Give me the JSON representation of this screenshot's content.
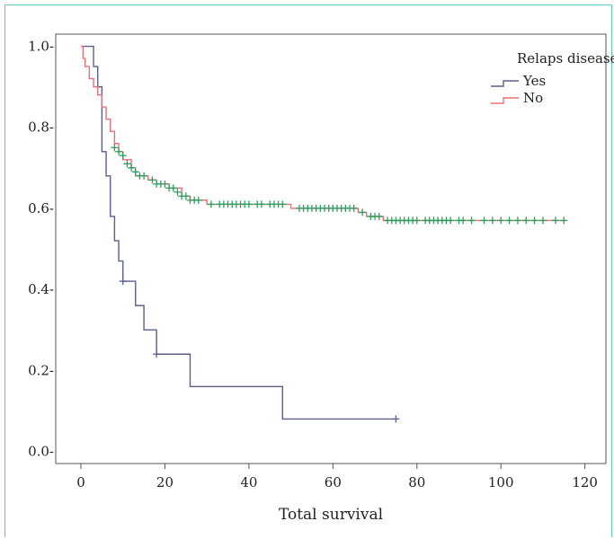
{
  "chart_data": {
    "type": "line",
    "subtype": "kaplan-meier step",
    "title": "",
    "xlabel": "Total survival",
    "ylabel": "",
    "xlim": [
      -6,
      125
    ],
    "ylim": [
      -0.03,
      1.03
    ],
    "xticks": [
      0,
      20,
      40,
      60,
      80,
      100,
      120
    ],
    "yticks": [
      0.0,
      0.2,
      0.4,
      0.6,
      0.8,
      1.0
    ],
    "xtick_labels": [
      "0",
      "20",
      "40",
      "60",
      "80",
      "100",
      "120"
    ],
    "ytick_labels": [
      "0.0-",
      "0.2-",
      "0.4-",
      "0.6-",
      "0.8-",
      "1.0-"
    ],
    "grid": false,
    "legend": {
      "title": "Relaps disease",
      "position": "top-right"
    },
    "censor_color": "#2e9e5e",
    "series": [
      {
        "name": "Yes",
        "color": "#5a5f8c",
        "steps": [
          [
            0,
            1.0
          ],
          [
            3,
            0.95
          ],
          [
            4,
            0.9
          ],
          [
            5,
            0.74
          ],
          [
            6,
            0.68
          ],
          [
            7,
            0.58
          ],
          [
            8,
            0.52
          ],
          [
            9,
            0.47
          ],
          [
            10,
            0.42
          ],
          [
            13,
            0.36
          ],
          [
            15,
            0.3
          ],
          [
            18,
            0.24
          ],
          [
            26,
            0.16
          ],
          [
            48,
            0.08
          ],
          [
            75,
            0.08
          ]
        ],
        "censored": [
          [
            10,
            0.42
          ],
          [
            18,
            0.24
          ],
          [
            75,
            0.08
          ]
        ]
      },
      {
        "name": "No",
        "color": "#e8707a",
        "steps": [
          [
            0,
            1.0
          ],
          [
            0.5,
            0.97
          ],
          [
            1,
            0.95
          ],
          [
            2,
            0.92
          ],
          [
            3,
            0.9
          ],
          [
            4,
            0.88
          ],
          [
            5,
            0.85
          ],
          [
            6,
            0.82
          ],
          [
            7,
            0.79
          ],
          [
            8,
            0.76
          ],
          [
            9,
            0.74
          ],
          [
            10,
            0.72
          ],
          [
            12,
            0.7
          ],
          [
            13,
            0.68
          ],
          [
            16,
            0.67
          ],
          [
            18,
            0.66
          ],
          [
            21,
            0.65
          ],
          [
            24,
            0.63
          ],
          [
            26,
            0.62
          ],
          [
            30,
            0.61
          ],
          [
            50,
            0.6
          ],
          [
            66,
            0.59
          ],
          [
            68,
            0.58
          ],
          [
            72,
            0.57
          ],
          [
            115,
            0.57
          ]
        ],
        "censored": [
          [
            8,
            0.75
          ],
          [
            9,
            0.74
          ],
          [
            10,
            0.73
          ],
          [
            11,
            0.71
          ],
          [
            12,
            0.7
          ],
          [
            13,
            0.69
          ],
          [
            14,
            0.68
          ],
          [
            15,
            0.68
          ],
          [
            17,
            0.67
          ],
          [
            18,
            0.66
          ],
          [
            19,
            0.66
          ],
          [
            20,
            0.66
          ],
          [
            21,
            0.65
          ],
          [
            22,
            0.65
          ],
          [
            23,
            0.64
          ],
          [
            24,
            0.63
          ],
          [
            25,
            0.63
          ],
          [
            26,
            0.62
          ],
          [
            27,
            0.62
          ],
          [
            28,
            0.62
          ],
          [
            31,
            0.61
          ],
          [
            33,
            0.61
          ],
          [
            34,
            0.61
          ],
          [
            35,
            0.61
          ],
          [
            36,
            0.61
          ],
          [
            37,
            0.61
          ],
          [
            38,
            0.61
          ],
          [
            39,
            0.61
          ],
          [
            40,
            0.61
          ],
          [
            42,
            0.61
          ],
          [
            43,
            0.61
          ],
          [
            45,
            0.61
          ],
          [
            46,
            0.61
          ],
          [
            47,
            0.61
          ],
          [
            48,
            0.61
          ],
          [
            52,
            0.6
          ],
          [
            53,
            0.6
          ],
          [
            54,
            0.6
          ],
          [
            55,
            0.6
          ],
          [
            56,
            0.6
          ],
          [
            57,
            0.6
          ],
          [
            58,
            0.6
          ],
          [
            59,
            0.6
          ],
          [
            60,
            0.6
          ],
          [
            61,
            0.6
          ],
          [
            62,
            0.6
          ],
          [
            63,
            0.6
          ],
          [
            64,
            0.6
          ],
          [
            65,
            0.6
          ],
          [
            67,
            0.59
          ],
          [
            69,
            0.58
          ],
          [
            70,
            0.58
          ],
          [
            71,
            0.58
          ],
          [
            73,
            0.57
          ],
          [
            74,
            0.57
          ],
          [
            75,
            0.57
          ],
          [
            76,
            0.57
          ],
          [
            77,
            0.57
          ],
          [
            78,
            0.57
          ],
          [
            79,
            0.57
          ],
          [
            80,
            0.57
          ],
          [
            82,
            0.57
          ],
          [
            83,
            0.57
          ],
          [
            84,
            0.57
          ],
          [
            85,
            0.57
          ],
          [
            86,
            0.57
          ],
          [
            87,
            0.57
          ],
          [
            88,
            0.57
          ],
          [
            90,
            0.57
          ],
          [
            91,
            0.57
          ],
          [
            93,
            0.57
          ],
          [
            96,
            0.57
          ],
          [
            98,
            0.57
          ],
          [
            100,
            0.57
          ],
          [
            102,
            0.57
          ],
          [
            104,
            0.57
          ],
          [
            106,
            0.57
          ],
          [
            108,
            0.57
          ],
          [
            110,
            0.57
          ],
          [
            113,
            0.57
          ],
          [
            115,
            0.57
          ]
        ]
      }
    ]
  }
}
